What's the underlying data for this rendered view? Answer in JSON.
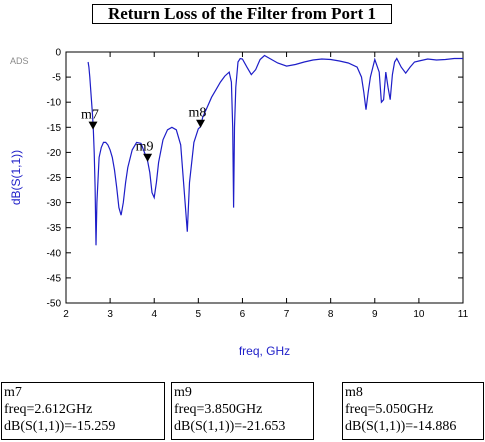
{
  "title": "Return Loss of the Filter from Port 1",
  "watermark": "ADS",
  "chart_data": {
    "type": "line",
    "title": "Return Loss of the Filter from Port 1",
    "xlabel": "freq, GHz",
    "ylabel": "dB(S(1,1))",
    "xlim": [
      2,
      11
    ],
    "ylim": [
      -50,
      0
    ],
    "xticks": [
      2,
      3,
      4,
      5,
      6,
      7,
      8,
      9,
      10,
      11
    ],
    "yticks": [
      0,
      -5,
      -10,
      -15,
      -20,
      -25,
      -30,
      -35,
      -40,
      -45,
      -50
    ],
    "grid": false,
    "line_color": "#1e1ec8",
    "series": [
      {
        "x": [
          2.5,
          2.52,
          2.54,
          2.56,
          2.58,
          2.6,
          2.62,
          2.64,
          2.66,
          2.68,
          2.7,
          2.75,
          2.8,
          2.85,
          2.9,
          2.95,
          3.0,
          3.05,
          3.1,
          3.15,
          3.2,
          3.25,
          3.3,
          3.35,
          3.4,
          3.5,
          3.6,
          3.7,
          3.8,
          3.85,
          3.9,
          3.95,
          4.0,
          4.05,
          4.1,
          4.2,
          4.3,
          4.4,
          4.5,
          4.6,
          4.7,
          4.75,
          4.8,
          4.9,
          5.0,
          5.05,
          5.1,
          5.2,
          5.3,
          5.4,
          5.5,
          5.6,
          5.7,
          5.75,
          5.78,
          5.8,
          5.82,
          5.85,
          5.9,
          5.95,
          6.0,
          6.1,
          6.2,
          6.3,
          6.35,
          6.4,
          6.5,
          6.6,
          6.8,
          7.0,
          7.2,
          7.4,
          7.6,
          7.8,
          8.0,
          8.2,
          8.4,
          8.6,
          8.7,
          8.75,
          8.8,
          8.85,
          8.9,
          9.0,
          9.1,
          9.15,
          9.2,
          9.25,
          9.3,
          9.35,
          9.4,
          9.45,
          9.5,
          9.6,
          9.7,
          9.8,
          9.9,
          10.0,
          10.2,
          10.4,
          10.6,
          10.8,
          11.0
        ],
        "y": [
          -2,
          -3,
          -5,
          -7.5,
          -10,
          -12.5,
          -15.3,
          -20,
          -27,
          -38.5,
          -30,
          -21,
          -19,
          -18,
          -18,
          -18.5,
          -19.5,
          -21,
          -23.5,
          -27,
          -31,
          -32.5,
          -30,
          -26,
          -23,
          -19.5,
          -18,
          -18.2,
          -20.5,
          -21.7,
          -24,
          -28,
          -29,
          -26,
          -22,
          -17.5,
          -15.5,
          -15,
          -15.5,
          -18.5,
          -30,
          -35.8,
          -26,
          -18,
          -15.3,
          -14.9,
          -13,
          -11,
          -9,
          -7.5,
          -6,
          -4.8,
          -4,
          -6,
          -15,
          -31,
          -15,
          -7,
          -2,
          -1.3,
          -1.4,
          -3,
          -4.5,
          -3.5,
          -2.5,
          -1.5,
          -0.7,
          -1.2,
          -2.2,
          -2.8,
          -2.5,
          -2,
          -1.6,
          -1.4,
          -1.5,
          -1.8,
          -2.2,
          -3,
          -5,
          -8,
          -11.5,
          -8,
          -5,
          -1.5,
          -4,
          -10,
          -9.5,
          -4,
          -7,
          -9.5,
          -4.5,
          -2,
          -1.3,
          -3,
          -4.2,
          -3,
          -2,
          -1.8,
          -1.4,
          -1.6,
          -1.5,
          -1.3,
          -1.3
        ]
      }
    ],
    "markers": [
      {
        "name": "m7",
        "freq": 2.612,
        "value": -15.259,
        "freq_text": "freq=2.612GHz",
        "value_text": "dB(S(1,1))=-15.259"
      },
      {
        "name": "m9",
        "freq": 3.85,
        "value": -21.653,
        "freq_text": "freq=3.850GHz",
        "value_text": "dB(S(1,1))=-21.653"
      },
      {
        "name": "m8",
        "freq": 5.05,
        "value": -14.886,
        "freq_text": "freq=5.050GHz",
        "value_text": "dB(S(1,1))=-14.886"
      }
    ]
  }
}
